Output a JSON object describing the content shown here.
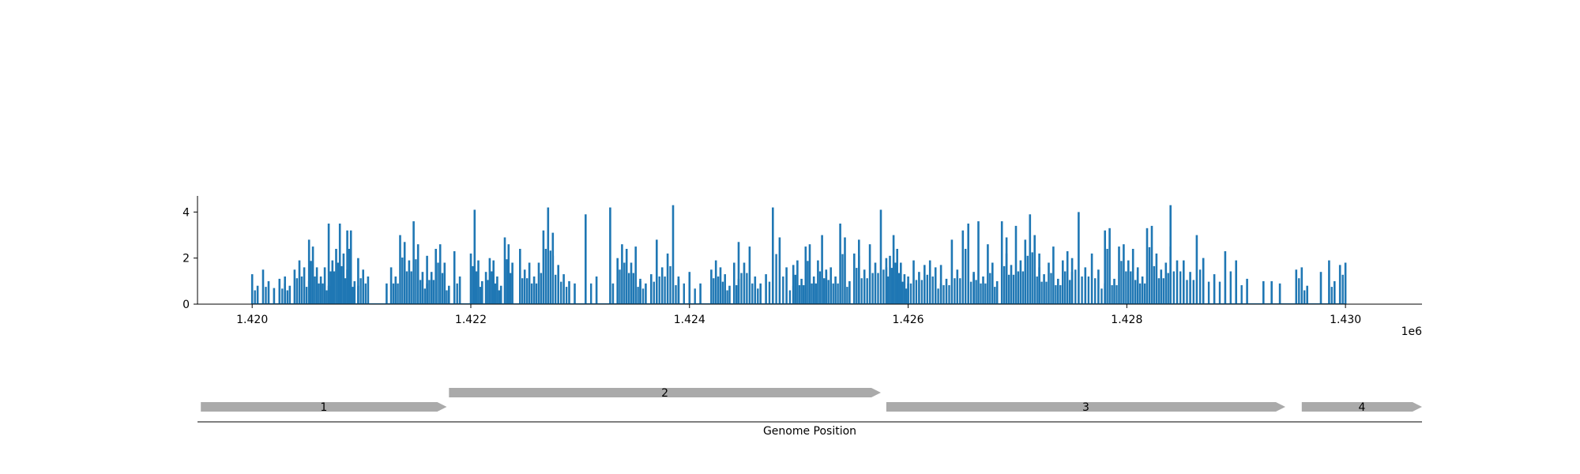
{
  "chart_data": [
    {
      "type": "bar",
      "subtype": "coverage-track",
      "title": "",
      "xlabel": "",
      "ylabel": "",
      "x_offset_label": "1e6",
      "xlim": [
        1419500,
        1430700
      ],
      "ylim": [
        0,
        4.7
      ],
      "grid": false,
      "color": "#1f77b4",
      "xticks": [
        {
          "value": 1420000,
          "label": "1.420"
        },
        {
          "value": 1422000,
          "label": "1.422"
        },
        {
          "value": 1424000,
          "label": "1.424"
        },
        {
          "value": 1426000,
          "label": "1.426"
        },
        {
          "value": 1428000,
          "label": "1.428"
        },
        {
          "value": 1430000,
          "label": "1.430"
        }
      ],
      "yticks": [
        {
          "value": 0,
          "label": "0"
        },
        {
          "value": 2,
          "label": "2"
        },
        {
          "value": 4,
          "label": "4"
        }
      ],
      "clusters": [
        {
          "range": [
            1420000,
            1420050
          ],
          "peaks": [
            1.3,
            0.8
          ]
        },
        {
          "range": [
            1420100,
            1420300
          ],
          "peaks": [
            1.5,
            1.0,
            0.7,
            1.1,
            0.9
          ]
        },
        {
          "range": [
            1420300,
            1420520
          ],
          "peaks": [
            1.2,
            0.8,
            1.5,
            1.9,
            1.6,
            1.0
          ]
        },
        {
          "range": [
            1420520,
            1420700
          ],
          "peaks": [
            2.8,
            2.5,
            1.6,
            1.2,
            1.6,
            0.8
          ]
        },
        {
          "range": [
            1420700,
            1420870
          ],
          "peaks": [
            3.5,
            1.9,
            2.4,
            3.5,
            2.2,
            1.5
          ]
        },
        {
          "range": [
            1420870,
            1420970
          ],
          "peaks": [
            3.2,
            3.2,
            1.0,
            0.8
          ]
        },
        {
          "range": [
            1420970,
            1421060
          ],
          "peaks": [
            2.0,
            1.5,
            1.2
          ]
        },
        {
          "range": [
            1421230,
            1421600
          ],
          "peaks": [
            0.9,
            1.6,
            1.2,
            3.0,
            2.7,
            1.9,
            3.6,
            2.6,
            1.4,
            0.9
          ]
        },
        {
          "range": [
            1421600,
            1421800
          ],
          "peaks": [
            2.1,
            1.4,
            2.4,
            2.6,
            1.8,
            0.8
          ]
        },
        {
          "range": [
            1421850,
            1421900
          ],
          "peaks": [
            2.3,
            1.2
          ]
        },
        {
          "range": [
            1422000,
            1422380
          ],
          "peaks": [
            2.2,
            4.1,
            1.9,
            1.0,
            1.4,
            2.0,
            1.9,
            1.2,
            0.8,
            2.9,
            2.6,
            1.8
          ]
        },
        {
          "range": [
            1422450,
            1422750
          ],
          "peaks": [
            2.4,
            1.5,
            1.8,
            1.2,
            1.8,
            3.2,
            4.2,
            3.1
          ]
        },
        {
          "range": [
            1422750,
            1422950
          ],
          "peaks": [
            2.1,
            1.7,
            1.3,
            1.0,
            0.9
          ]
        },
        {
          "range": [
            1423050,
            1423150
          ],
          "peaks": [
            3.9,
            1.2
          ]
        },
        {
          "range": [
            1423250,
            1423300
          ],
          "peaks": [
            4.2
          ]
        },
        {
          "range": [
            1423300,
            1423550
          ],
          "peaks": [
            0.9,
            2.0,
            2.6,
            2.4,
            1.8,
            2.5,
            1.0
          ]
        },
        {
          "range": [
            1423550,
            1423900
          ],
          "peaks": [
            1.1,
            0.9,
            1.3,
            2.8,
            1.6,
            2.2,
            4.3,
            1.1
          ]
        },
        {
          "range": [
            1423900,
            1424100
          ],
          "peaks": [
            1.2,
            1.4,
            0.9
          ]
        },
        {
          "range": [
            1424200,
            1424450
          ],
          "peaks": [
            1.5,
            1.9,
            1.6,
            1.3,
            0.8,
            1.8,
            1.1
          ]
        },
        {
          "range": [
            1424450,
            1424650
          ],
          "peaks": [
            2.7,
            1.8,
            2.5,
            1.2,
            0.9
          ]
        },
        {
          "range": [
            1424700,
            1424950
          ],
          "peaks": [
            1.3,
            4.2,
            2.9,
            1.6,
            0.8
          ]
        },
        {
          "range": [
            1424950,
            1425250
          ],
          "peaks": [
            1.7,
            1.9,
            1.1,
            2.5,
            2.6,
            1.2,
            1.9,
            3.0,
            1.5
          ]
        },
        {
          "range": [
            1425250,
            1425550
          ],
          "peaks": [
            1.4,
            1.6,
            1.2,
            3.5,
            2.9,
            1.0,
            2.2,
            2.1
          ]
        },
        {
          "range": [
            1425550,
            1425800
          ],
          "peaks": [
            2.8,
            1.5,
            2.6,
            1.8,
            4.1,
            2.0
          ]
        },
        {
          "range": [
            1425800,
            1426000
          ],
          "peaks": [
            1.6,
            2.1,
            3.0,
            2.4,
            1.8,
            1.3,
            0.9
          ]
        },
        {
          "range": [
            1426000,
            1426300
          ],
          "peaks": [
            1.2,
            1.9,
            1.4,
            1.7,
            1.9,
            1.6,
            0.9
          ]
        },
        {
          "range": [
            1426300,
            1426600
          ],
          "peaks": [
            1.7,
            1.1,
            2.8,
            1.5,
            3.2,
            3.5,
            1.3
          ]
        },
        {
          "range": [
            1426600,
            1426900
          ],
          "peaks": [
            1.4,
            3.6,
            1.2,
            2.6,
            1.8,
            1.0,
            3.6,
            2.2
          ]
        },
        {
          "range": [
            1426900,
            1427200
          ],
          "peaks": [
            2.9,
            1.7,
            3.4,
            1.9,
            2.8,
            3.9,
            3.0,
            1.6
          ]
        },
        {
          "range": [
            1427200,
            1427500
          ],
          "peaks": [
            2.2,
            1.3,
            1.8,
            2.5,
            1.1,
            1.9,
            2.3,
            1.4
          ]
        },
        {
          "range": [
            1427500,
            1427800
          ],
          "peaks": [
            2.0,
            4.0,
            1.6,
            2.2,
            1.5,
            0.9
          ]
        },
        {
          "range": [
            1427800,
            1428100
          ],
          "peaks": [
            3.2,
            3.3,
            1.1,
            2.5,
            2.6,
            1.9,
            2.4,
            1.4
          ]
        },
        {
          "range": [
            1428100,
            1428400
          ],
          "peaks": [
            1.6,
            1.2,
            3.3,
            3.4,
            2.2,
            1.5,
            1.8,
            2.5
          ]
        },
        {
          "range": [
            1428400,
            1428700
          ],
          "peaks": [
            4.3,
            1.9,
            1.9,
            1.4,
            3.0,
            2.0
          ]
        },
        {
          "range": [
            1428700,
            1429100
          ],
          "peaks": [
            2.0,
            1.3,
            2.3,
            1.9,
            1.1
          ]
        },
        {
          "range": [
            1429250,
            1429400
          ],
          "peaks": [
            1.0,
            1.0,
            0.9
          ]
        },
        {
          "range": [
            1429550,
            1429650
          ],
          "peaks": [
            1.5,
            1.6,
            0.8
          ]
        },
        {
          "range": [
            1429750,
            1429800
          ],
          "peaks": [
            1.4
          ]
        },
        {
          "range": [
            1429850,
            1430000
          ],
          "peaks": [
            1.9,
            1.0,
            1.7,
            1.8
          ]
        }
      ]
    },
    {
      "type": "gene-track",
      "xlabel": "Genome Position",
      "color": "#aaaaaa",
      "genes": [
        {
          "label": "1",
          "start": 1419530,
          "end": 1421780,
          "row": 0
        },
        {
          "label": "2",
          "start": 1421800,
          "end": 1425750,
          "row": 1
        },
        {
          "label": "3",
          "start": 1425800,
          "end": 1429450,
          "row": 0
        },
        {
          "label": "4",
          "start": 1429600,
          "end": 1430700,
          "row": 0
        }
      ]
    }
  ]
}
